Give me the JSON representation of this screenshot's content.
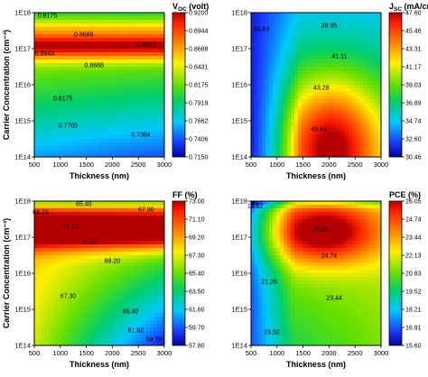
{
  "figure": {
    "x_label": "Thickness (nm)",
    "y_label": "Carrier Concentration (cm⁻³)"
  },
  "chart_data": [
    {
      "type": "heatmap",
      "id": "voc",
      "title": "V",
      "title_sub": "OC",
      "title_rest": " (volt)",
      "xlabel": "Thickness (nm)",
      "ylabel": "Carrier Concentration (cm⁻³)",
      "x_ticks": [
        "500",
        "1000",
        "1500",
        "2000",
        "2500",
        "3000"
      ],
      "y_ticks": [
        "1E14",
        "1E15",
        "1E16",
        "1E17",
        "1E18"
      ],
      "x_range": [
        500,
        3000
      ],
      "y_range_log10": [
        14,
        18
      ],
      "scale_ticks": [
        "0.9200",
        "0.8944",
        "0.8688",
        "0.8431",
        "0.8175",
        "0.7919",
        "0.7662",
        "0.7406",
        "0.7150"
      ],
      "scale_range": [
        0.715,
        0.92
      ],
      "contour_labels": [
        {
          "text": "0.8175",
          "x": 750,
          "y": 17.92
        },
        {
          "text": "0.8688",
          "x": 1450,
          "y": 17.4
        },
        {
          "text": "0.8944",
          "x": 2650,
          "y": 17.12
        },
        {
          "text": "0.8944",
          "x": 700,
          "y": 16.88
        },
        {
          "text": "0.8688",
          "x": 1650,
          "y": 16.55
        },
        {
          "text": "0.8175",
          "x": 1050,
          "y": 15.62
        },
        {
          "text": "0.7705",
          "x": 1150,
          "y": 14.88
        },
        {
          "text": "0.7364",
          "x": 2550,
          "y": 14.62
        }
      ]
    },
    {
      "type": "heatmap",
      "id": "jsc",
      "title": "J",
      "title_sub": "SC",
      "title_rest": " (mA/cm²)",
      "xlabel": "Thickness (nm)",
      "ylabel": "",
      "x_ticks": [
        "500",
        "1000",
        "1500",
        "2000",
        "2500",
        "3000"
      ],
      "y_ticks": [
        "1E14",
        "1E15",
        "1E16",
        "1E17",
        "1E18"
      ],
      "x_range": [
        500,
        3000
      ],
      "y_range_log10": [
        14,
        18
      ],
      "scale_ticks": [
        "47.60",
        "45.46",
        "43.31",
        "41.17",
        "39.03",
        "36.89",
        "34.74",
        "32.60",
        "30.46"
      ],
      "scale_range": [
        30.46,
        47.6
      ],
      "contour_labels": [
        {
          "text": "34.63",
          "x": 700,
          "y": 17.55
        },
        {
          "text": "38.95",
          "x": 2000,
          "y": 17.65
        },
        {
          "text": "41.11",
          "x": 2200,
          "y": 16.8
        },
        {
          "text": "43.28",
          "x": 1850,
          "y": 15.92
        },
        {
          "text": "45.44",
          "x": 1800,
          "y": 14.78
        }
      ]
    },
    {
      "type": "heatmap",
      "id": "ff",
      "title": "FF (%)",
      "title_sub": "",
      "title_rest": "",
      "xlabel": "Thickness (nm)",
      "ylabel": "Carrier Concentration (cm⁻³)",
      "x_ticks": [
        "500",
        "1000",
        "1500",
        "2000",
        "2500",
        "3000"
      ],
      "y_ticks": [
        "1E14",
        "1E15",
        "1E16",
        "1E17",
        "1E18"
      ],
      "x_range": [
        500,
        3000
      ],
      "y_range_log10": [
        14,
        18
      ],
      "scale_ticks": [
        "73.00",
        "71.10",
        "69.20",
        "67.30",
        "65.40",
        "63.50",
        "61.60",
        "59.70",
        "57.80"
      ],
      "scale_range": [
        57.8,
        73.0
      ],
      "contour_labels": [
        {
          "text": "65.40",
          "x": 1450,
          "y": 17.92
        },
        {
          "text": "67.30",
          "x": 2650,
          "y": 17.78
        },
        {
          "text": "69.20",
          "x": 620,
          "y": 17.7
        },
        {
          "text": "71.10",
          "x": 1200,
          "y": 17.3
        },
        {
          "text": "71.10",
          "x": 1550,
          "y": 16.88
        },
        {
          "text": "69.20",
          "x": 2000,
          "y": 16.35
        },
        {
          "text": "67.30",
          "x": 1150,
          "y": 15.38
        },
        {
          "text": "65.40",
          "x": 2350,
          "y": 14.95
        },
        {
          "text": "61.92",
          "x": 2450,
          "y": 14.42
        },
        {
          "text": "59.70",
          "x": 2800,
          "y": 14.18
        }
      ]
    },
    {
      "type": "heatmap",
      "id": "pce",
      "title": "PCE (%)",
      "title_sub": "",
      "title_rest": "",
      "xlabel": "Thickness (nm)",
      "ylabel": "",
      "x_ticks": [
        "500",
        "1000",
        "1500",
        "2000",
        "2500",
        "3000"
      ],
      "y_ticks": [
        "1E14",
        "1E15",
        "1E16",
        "1E17",
        "1E18"
      ],
      "x_range": [
        500,
        3000
      ],
      "y_range_log10": [
        14,
        18
      ],
      "scale_ticks": [
        "26.05",
        "24.74",
        "23.44",
        "22.13",
        "20.83",
        "19.52",
        "18.21",
        "16.91",
        "15.60"
      ],
      "scale_range": [
        15.6,
        26.05
      ],
      "contour_labels": [
        {
          "text": "19.52",
          "x": 580,
          "y": 17.88
        },
        {
          "text": "25.61",
          "x": 1850,
          "y": 17.22
        },
        {
          "text": "24.74",
          "x": 2000,
          "y": 16.5
        },
        {
          "text": "21.26",
          "x": 850,
          "y": 15.78
        },
        {
          "text": "23.44",
          "x": 2100,
          "y": 15.32
        },
        {
          "text": "19.52",
          "x": 900,
          "y": 14.38
        }
      ]
    }
  ]
}
